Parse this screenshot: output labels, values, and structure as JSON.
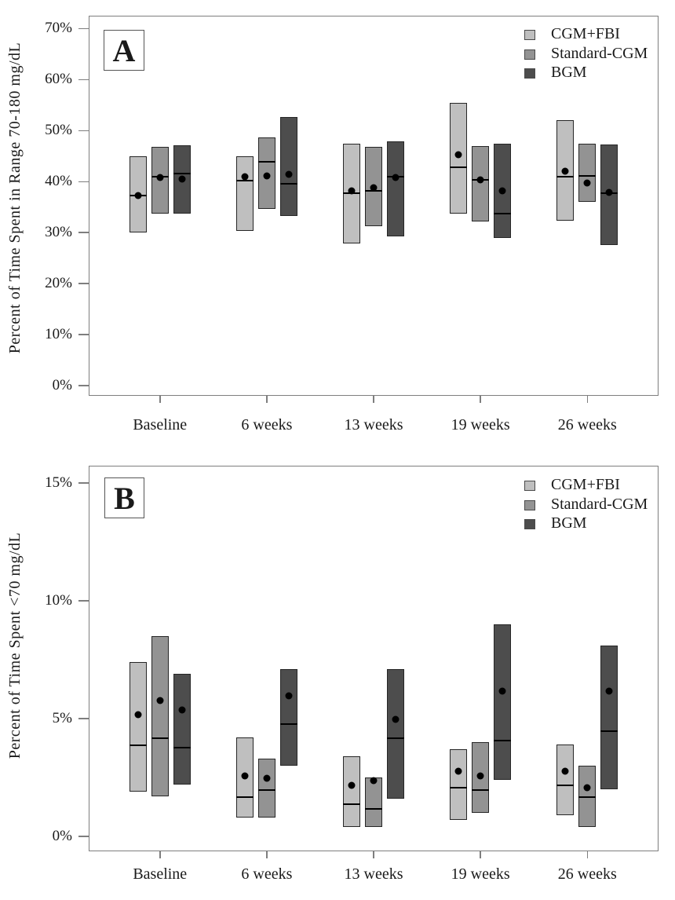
{
  "figure_description": "Two-panel floating bar chart comparing glucose time-in-range metrics for three monitoring groups over time; each bar shows interquartile range with a horizontal median line and a black mean dot",
  "legend": {
    "items": [
      {
        "label": "CGM+FBI",
        "color": "#bfbfbf"
      },
      {
        "label": "Standard-CGM",
        "color": "#939393"
      },
      {
        "label": "BGM",
        "color": "#4d4d4d"
      }
    ],
    "position": "top-right"
  },
  "chart_data": [
    {
      "panel_label": "A",
      "type": "bar",
      "subtype": "floating-range-bars-with-median-line-and-mean-dot",
      "ylabel": "Percent of Time Spent in Range 70-180 mg/dL",
      "ylim": [
        0,
        70
      ],
      "yticks": [
        0,
        10,
        20,
        30,
        40,
        50,
        60,
        70
      ],
      "ytick_suffix": "%",
      "grid": false,
      "legend_position": "top-right",
      "categories": [
        "Baseline",
        "6 weeks",
        "13 weeks",
        "19 weeks",
        "26 weeks"
      ],
      "series": [
        {
          "name": "CGM+FBI",
          "color": "#bfbfbf",
          "bars": [
            {
              "low": 30.0,
              "high": 44.9,
              "median": 37.5,
              "mean": 37.4
            },
            {
              "low": 30.4,
              "high": 45.0,
              "median": 40.3,
              "mean": 41.1
            },
            {
              "low": 27.9,
              "high": 47.5,
              "median": 37.9,
              "mean": 38.3
            },
            {
              "low": 33.8,
              "high": 55.5,
              "median": 43.0,
              "mean": 45.4
            },
            {
              "low": 32.4,
              "high": 52.1,
              "median": 41.1,
              "mean": 42.2
            }
          ]
        },
        {
          "name": "Standard-CGM",
          "color": "#939393",
          "bars": [
            {
              "low": 33.8,
              "high": 46.8,
              "median": 41.1,
              "mean": 40.9
            },
            {
              "low": 34.6,
              "high": 48.7,
              "median": 44.0,
              "mean": 41.2
            },
            {
              "low": 31.2,
              "high": 46.8,
              "median": 38.3,
              "mean": 38.9
            },
            {
              "low": 32.2,
              "high": 47.0,
              "median": 40.5,
              "mean": 40.5
            },
            {
              "low": 36.1,
              "high": 47.4,
              "median": 41.2,
              "mean": 39.9
            }
          ]
        },
        {
          "name": "BGM",
          "color": "#4d4d4d",
          "bars": [
            {
              "low": 33.8,
              "high": 47.2,
              "median": 41.7,
              "mean": 40.6
            },
            {
              "low": 33.3,
              "high": 52.7,
              "median": 39.8,
              "mean": 41.6
            },
            {
              "low": 29.2,
              "high": 47.9,
              "median": 41.1,
              "mean": 41.0
            },
            {
              "low": 29.0,
              "high": 47.5,
              "median": 33.9,
              "mean": 38.4
            },
            {
              "low": 27.5,
              "high": 47.3,
              "median": 37.9,
              "mean": 38.0
            }
          ]
        }
      ]
    },
    {
      "panel_label": "B",
      "type": "bar",
      "subtype": "floating-range-bars-with-median-line-and-mean-dot",
      "ylabel": "Percent of Time Spent <70 mg/dL",
      "ylim": [
        0,
        15
      ],
      "yticks": [
        0,
        5,
        10,
        15
      ],
      "ytick_suffix": "%",
      "grid": false,
      "legend_position": "top-right",
      "categories": [
        "Baseline",
        "6 weeks",
        "13 weeks",
        "19 weeks",
        "26 weeks"
      ],
      "series": [
        {
          "name": "CGM+FBI",
          "color": "#bfbfbf",
          "bars": [
            {
              "low": 1.9,
              "high": 7.4,
              "median": 3.9,
              "mean": 5.2
            },
            {
              "low": 0.8,
              "high": 4.2,
              "median": 1.7,
              "mean": 2.6
            },
            {
              "low": 0.4,
              "high": 3.4,
              "median": 1.4,
              "mean": 2.2
            },
            {
              "low": 0.7,
              "high": 3.7,
              "median": 2.1,
              "mean": 2.8
            },
            {
              "low": 0.9,
              "high": 3.9,
              "median": 2.2,
              "mean": 2.8
            }
          ]
        },
        {
          "name": "Standard-CGM",
          "color": "#939393",
          "bars": [
            {
              "low": 1.7,
              "high": 8.5,
              "median": 4.2,
              "mean": 5.8
            },
            {
              "low": 0.8,
              "high": 3.3,
              "median": 2.0,
              "mean": 2.5
            },
            {
              "low": 0.4,
              "high": 2.5,
              "median": 1.2,
              "mean": 2.4
            },
            {
              "low": 1.0,
              "high": 4.0,
              "median": 2.0,
              "mean": 2.6
            },
            {
              "low": 0.4,
              "high": 3.0,
              "median": 1.7,
              "mean": 2.1
            }
          ]
        },
        {
          "name": "BGM",
          "color": "#4d4d4d",
          "bars": [
            {
              "low": 2.2,
              "high": 6.9,
              "median": 3.8,
              "mean": 5.4
            },
            {
              "low": 3.0,
              "high": 7.1,
              "median": 4.8,
              "mean": 6.0
            },
            {
              "low": 1.6,
              "high": 7.1,
              "median": 4.2,
              "mean": 5.0
            },
            {
              "low": 2.4,
              "high": 9.0,
              "median": 4.1,
              "mean": 6.2
            },
            {
              "low": 2.0,
              "high": 8.1,
              "median": 4.5,
              "mean": 6.2
            }
          ]
        }
      ]
    }
  ]
}
